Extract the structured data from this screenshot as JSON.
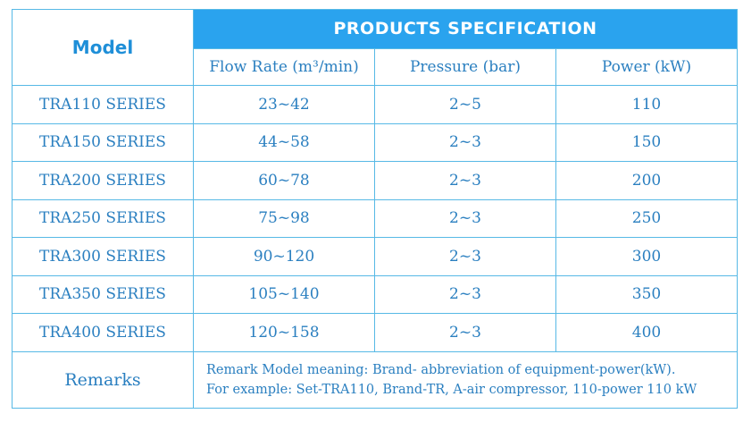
{
  "header": {
    "model_label": "Model",
    "spec_title": "PRODUCTS SPECIFICATION",
    "columns": [
      "Flow Rate (m³/min)",
      "Pressure (bar)",
      "Power (kW)"
    ]
  },
  "rows": [
    {
      "model": "TRA110 SERIES",
      "flow": "23~42",
      "pressure": "2~5",
      "power": "110"
    },
    {
      "model": "TRA150 SERIES",
      "flow": "44~58",
      "pressure": "2~3",
      "power": "150"
    },
    {
      "model": "TRA200 SERIES",
      "flow": "60~78",
      "pressure": "2~3",
      "power": "200"
    },
    {
      "model": "TRA250 SERIES",
      "flow": "75~98",
      "pressure": "2~3",
      "power": "250"
    },
    {
      "model": "TRA300 SERIES",
      "flow": "90~120",
      "pressure": "2~3",
      "power": "300"
    },
    {
      "model": "TRA350 SERIES",
      "flow": "105~140",
      "pressure": "2~3",
      "power": "350"
    },
    {
      "model": "TRA400 SERIES",
      "flow": "120~158",
      "pressure": "2~3",
      "power": "400"
    }
  ],
  "remarks": {
    "label": "Remarks",
    "line1": "Remark Model meaning: Brand- abbreviation of equipment-power(kW).",
    "line2": "For example: Set-TRA110, Brand-TR, A-air compressor, 110-power 110 kW"
  },
  "colors": {
    "border": "#57b9e6",
    "header_bg": "#2aa3ee",
    "text": "#2a7fc0"
  }
}
